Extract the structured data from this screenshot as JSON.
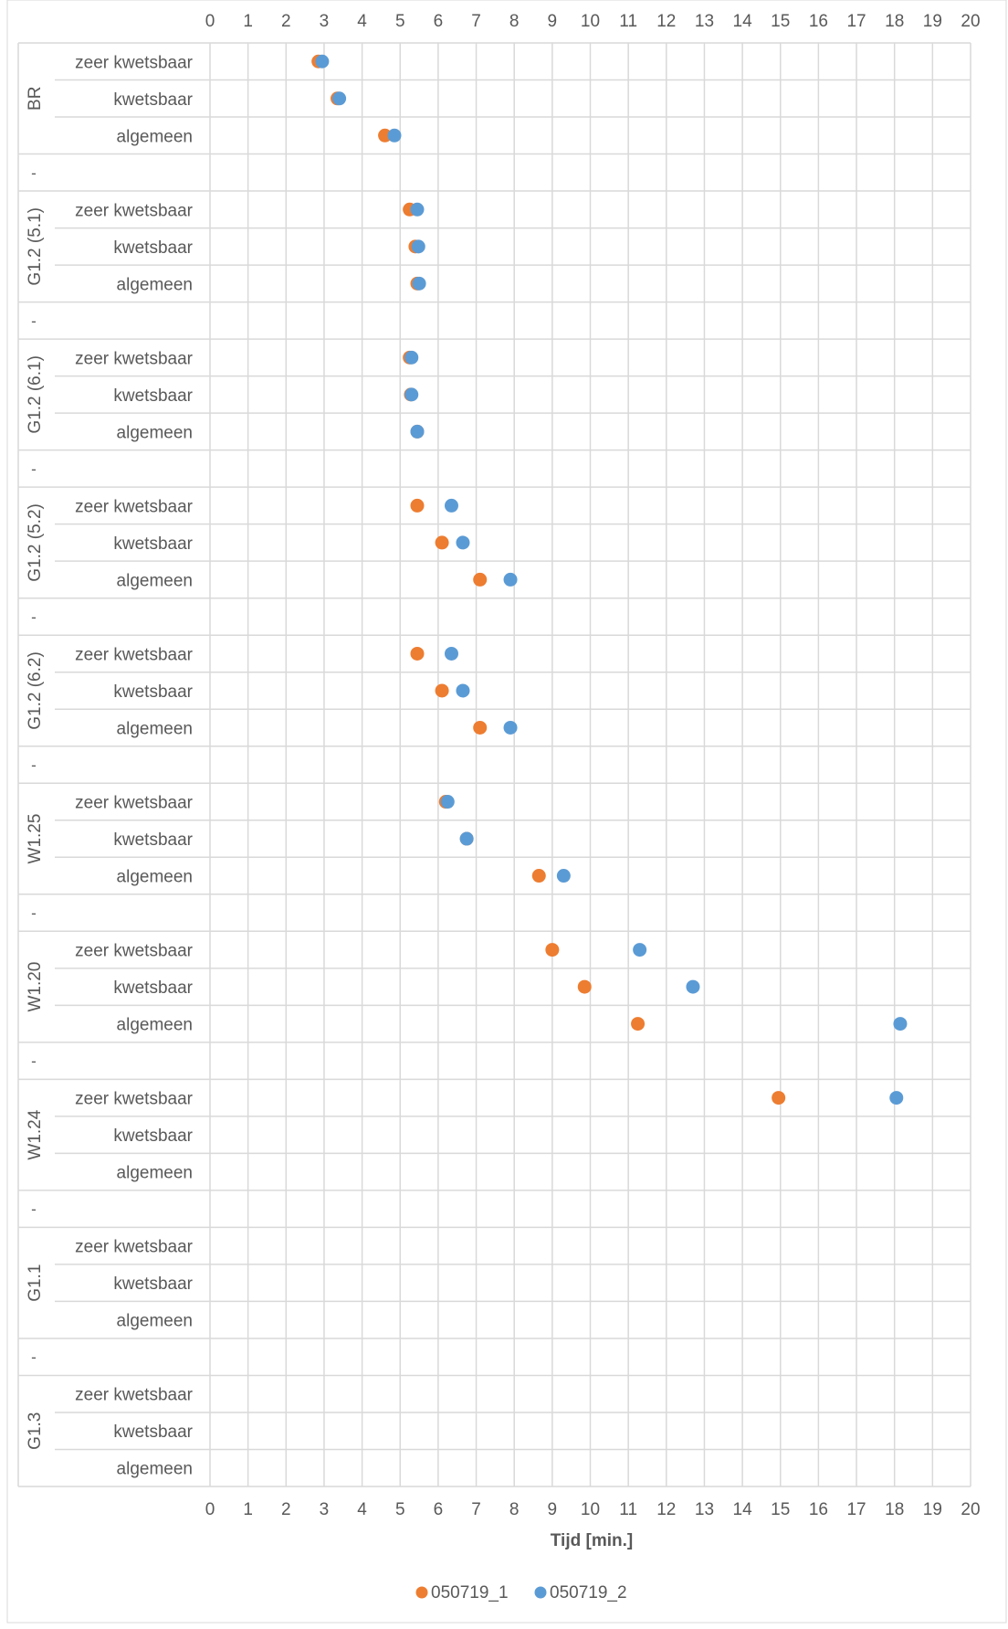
{
  "chart_data": {
    "type": "scatter",
    "orientation": "horizontal",
    "xlabel": "Tijd  [min.]",
    "xlim": [
      0,
      20
    ],
    "x_ticks": [
      0,
      1,
      2,
      3,
      4,
      5,
      6,
      7,
      8,
      9,
      10,
      11,
      12,
      13,
      14,
      15,
      16,
      17,
      18,
      19,
      20
    ],
    "grid": true,
    "legend_position": "bottom",
    "colors": {
      "050719_1": "#ED7D31",
      "050719_2": "#5B9BD5"
    },
    "series": [
      {
        "name": "050719_1"
      },
      {
        "name": "050719_2"
      }
    ],
    "groups": [
      {
        "name": "BR",
        "rows": [
          {
            "label": "zeer kwetsbaar",
            "values": [
              2.85,
              2.95
            ]
          },
          {
            "label": "kwetsbaar",
            "values": [
              3.35,
              3.4
            ]
          },
          {
            "label": "algemeen",
            "values": [
              4.6,
              4.85
            ]
          }
        ]
      },
      {
        "name": "G1.2 (5.1)",
        "rows": [
          {
            "label": "zeer kwetsbaar",
            "values": [
              5.25,
              5.45
            ]
          },
          {
            "label": "kwetsbaar",
            "values": [
              5.4,
              5.48
            ]
          },
          {
            "label": "algemeen",
            "values": [
              5.45,
              5.5
            ]
          }
        ]
      },
      {
        "name": "G1.2 (6.1)",
        "rows": [
          {
            "label": "zeer kwetsbaar",
            "values": [
              5.25,
              5.3
            ]
          },
          {
            "label": "kwetsbaar",
            "values": [
              5.28,
              5.3
            ]
          },
          {
            "label": "algemeen",
            "values": [
              5.45,
              5.45
            ]
          }
        ]
      },
      {
        "name": "G1.2 (5.2)",
        "rows": [
          {
            "label": "zeer kwetsbaar",
            "values": [
              5.45,
              6.35
            ]
          },
          {
            "label": "kwetsbaar",
            "values": [
              6.1,
              6.65
            ]
          },
          {
            "label": "algemeen",
            "values": [
              7.1,
              7.9
            ]
          }
        ]
      },
      {
        "name": "G1.2 (6.2)",
        "rows": [
          {
            "label": "zeer kwetsbaar",
            "values": [
              5.45,
              6.35
            ]
          },
          {
            "label": "kwetsbaar",
            "values": [
              6.1,
              6.65
            ]
          },
          {
            "label": "algemeen",
            "values": [
              7.1,
              7.9
            ]
          }
        ]
      },
      {
        "name": "W1.25",
        "rows": [
          {
            "label": "zeer kwetsbaar",
            "values": [
              6.2,
              6.25
            ]
          },
          {
            "label": "kwetsbaar",
            "values": [
              6.75,
              6.75
            ]
          },
          {
            "label": "algemeen",
            "values": [
              8.65,
              9.3
            ]
          }
        ]
      },
      {
        "name": "W1.20",
        "rows": [
          {
            "label": "zeer kwetsbaar",
            "values": [
              9.0,
              11.3
            ]
          },
          {
            "label": "kwetsbaar",
            "values": [
              9.85,
              12.7
            ]
          },
          {
            "label": "algemeen",
            "values": [
              11.25,
              18.15
            ]
          }
        ]
      },
      {
        "name": "W1.24",
        "rows": [
          {
            "label": "zeer kwetsbaar",
            "values": [
              14.95,
              18.05
            ]
          },
          {
            "label": "kwetsbaar",
            "values": [
              null,
              null
            ]
          },
          {
            "label": "algemeen",
            "values": [
              null,
              null
            ]
          }
        ]
      },
      {
        "name": "G1.1",
        "rows": [
          {
            "label": "zeer kwetsbaar",
            "values": [
              null,
              null
            ]
          },
          {
            "label": "kwetsbaar",
            "values": [
              null,
              null
            ]
          },
          {
            "label": "algemeen",
            "values": [
              null,
              null
            ]
          }
        ]
      },
      {
        "name": "G1.3",
        "rows": [
          {
            "label": "zeer kwetsbaar",
            "values": [
              null,
              null
            ]
          },
          {
            "label": "kwetsbaar",
            "values": [
              null,
              null
            ]
          },
          {
            "label": "algemeen",
            "values": [
              null,
              null
            ]
          }
        ]
      }
    ],
    "separator_label": "-"
  }
}
